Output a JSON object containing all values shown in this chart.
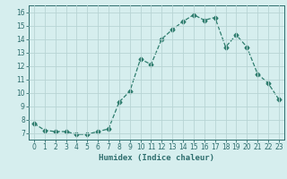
{
  "x": [
    0,
    1,
    2,
    3,
    4,
    5,
    6,
    7,
    8,
    9,
    10,
    11,
    12,
    13,
    14,
    15,
    16,
    17,
    18,
    19,
    20,
    21,
    22,
    23
  ],
  "y": [
    7.7,
    7.2,
    7.1,
    7.1,
    6.9,
    6.9,
    7.1,
    7.3,
    9.3,
    10.1,
    12.5,
    12.1,
    14.0,
    14.7,
    15.3,
    15.8,
    15.4,
    15.6,
    13.4,
    14.3,
    13.4,
    11.4,
    10.7,
    9.5
  ],
  "line_color": "#2e7d6e",
  "marker": "D",
  "marker_size": 2.5,
  "bg_color": "#d6eeee",
  "grid_color": "#b8d4d4",
  "xlabel": "Humidex (Indice chaleur)",
  "xlim": [
    -0.5,
    23.5
  ],
  "ylim": [
    6.5,
    16.5
  ],
  "yticks": [
    7,
    8,
    9,
    10,
    11,
    12,
    13,
    14,
    15,
    16
  ],
  "xticks": [
    0,
    1,
    2,
    3,
    4,
    5,
    6,
    7,
    8,
    9,
    10,
    11,
    12,
    13,
    14,
    15,
    16,
    17,
    18,
    19,
    20,
    21,
    22,
    23
  ],
  "tick_color": "#2e6e6e",
  "label_fontsize": 6.5,
  "tick_fontsize": 5.5
}
